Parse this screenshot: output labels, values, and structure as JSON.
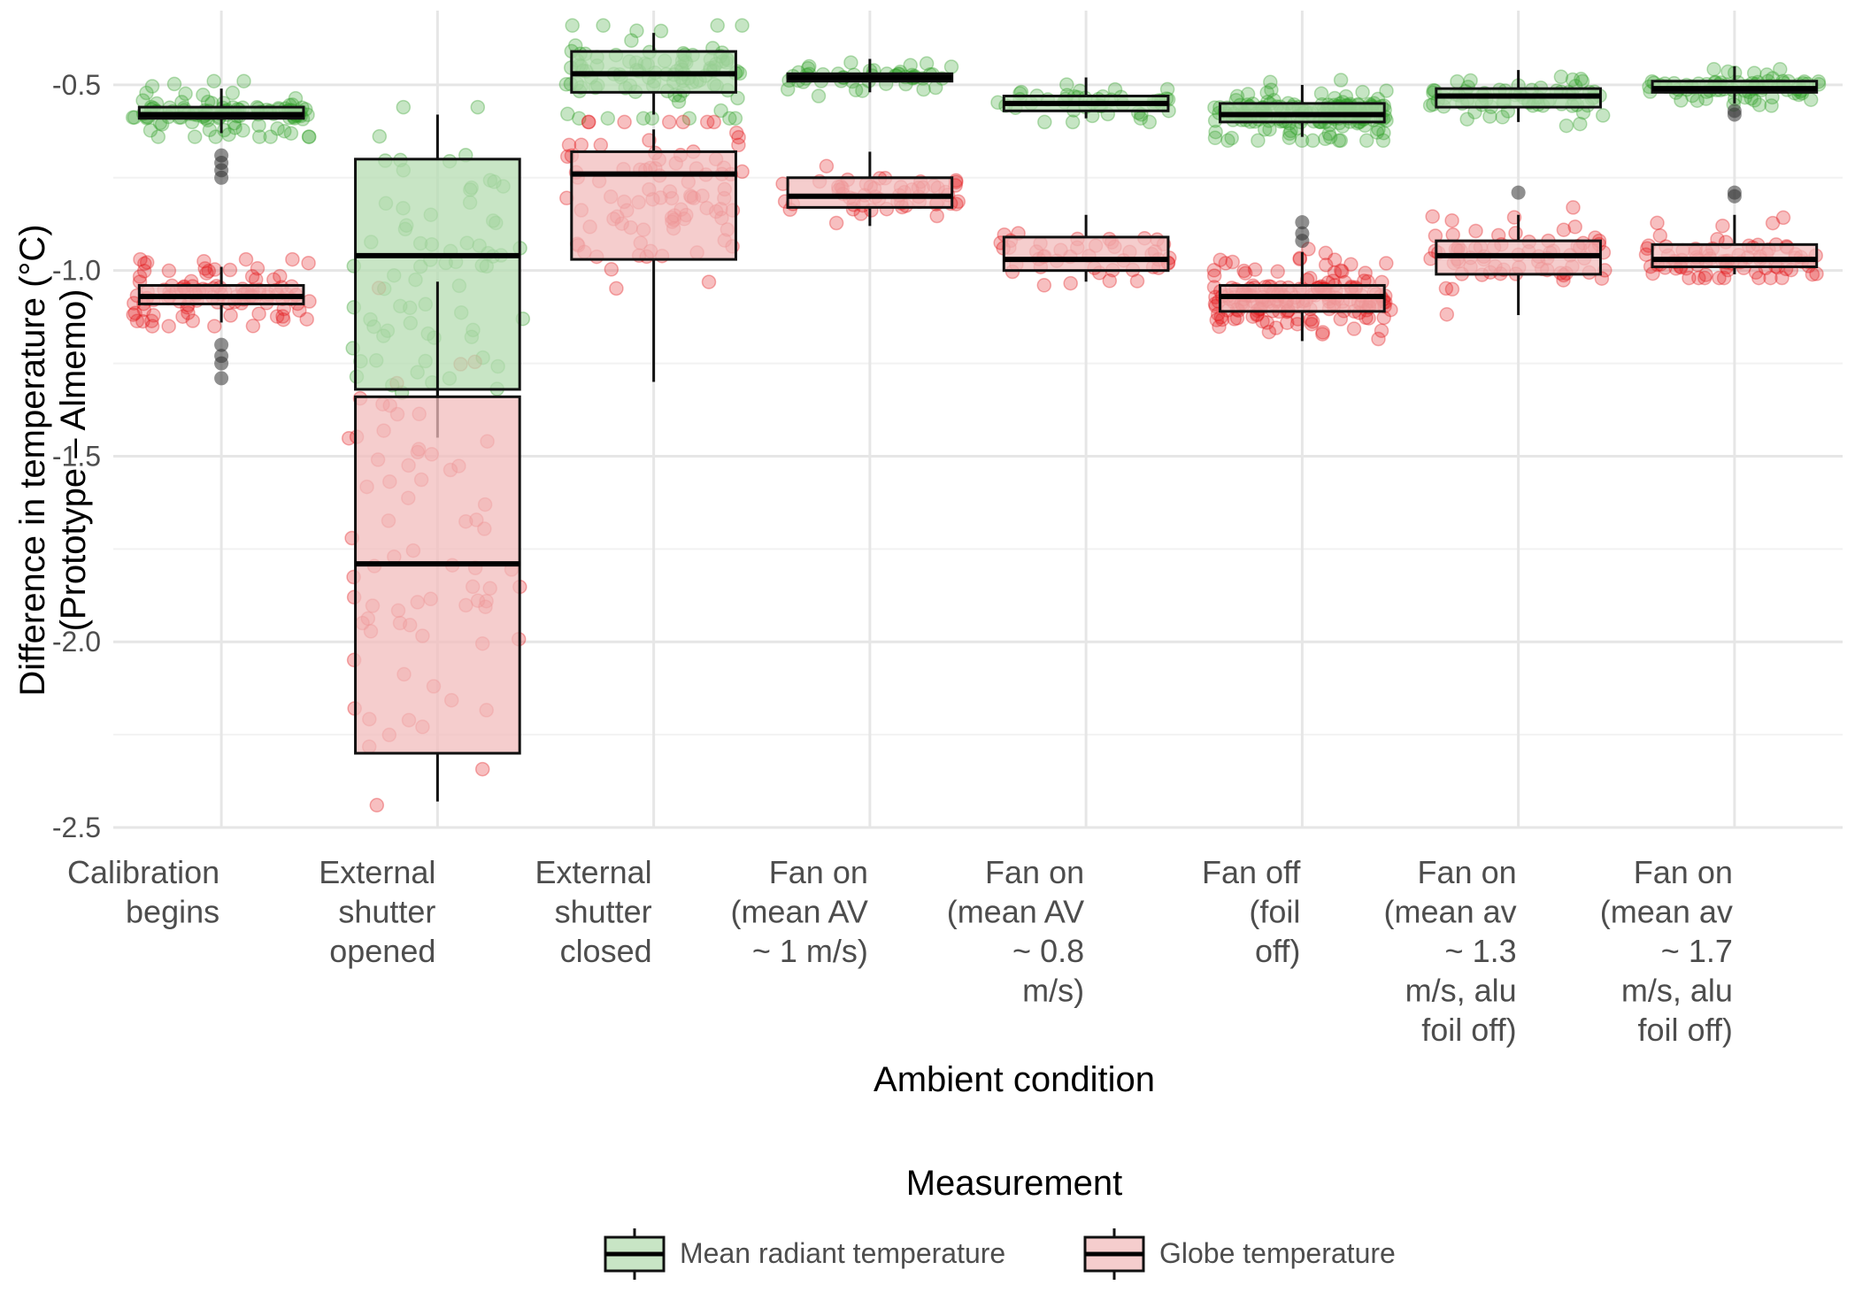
{
  "chart_data": {
    "type": "boxplot",
    "title": "",
    "xlabel": "Ambient condition",
    "ylabel_lines": [
      "Difference in temperature (°C)",
      "(Prototype – Almemo)"
    ],
    "ylim": [
      -2.5,
      -0.3
    ],
    "yticks": [
      -2.5,
      -2.0,
      -1.5,
      -1.0,
      -0.5
    ],
    "ytick_labels": [
      "-2.5",
      "-2.0",
      "-1.5",
      "-1.0",
      "-0.5"
    ],
    "grid": true,
    "categories": [
      {
        "lines": [
          "Calibration",
          "begins"
        ]
      },
      {
        "lines": [
          "External",
          "shutter",
          "opened"
        ]
      },
      {
        "lines": [
          "External",
          "shutter",
          "closed"
        ]
      },
      {
        "lines": [
          "Fan on",
          "(mean AV",
          "~ 1 m/s)"
        ]
      },
      {
        "lines": [
          "Fan on",
          "(mean AV",
          "~ 0.8",
          "m/s)"
        ]
      },
      {
        "lines": [
          "Fan off",
          "(foil",
          "off)"
        ]
      },
      {
        "lines": [
          "Fan on",
          "(mean av",
          "~ 1.3",
          "m/s, alu",
          "foil off)"
        ]
      },
      {
        "lines": [
          "Fan on",
          "(mean av",
          "~ 1.7",
          "m/s, alu",
          "foil off)"
        ]
      }
    ],
    "series": [
      {
        "name": "Mean radiant temperature",
        "point_color": "#33a02c",
        "fill_color": "#b6dcb2",
        "boxes": [
          {
            "q1": -0.59,
            "median": -0.58,
            "q3": -0.56,
            "whisker_low": -0.63,
            "whisker_high": -0.51,
            "outliers": [
              -0.69,
              -0.71,
              -0.73,
              -0.75
            ],
            "n": 110,
            "spread": 0.11
          },
          {
            "q1": -1.32,
            "median": -0.96,
            "q3": -0.7,
            "whisker_low": -1.45,
            "whisker_high": -0.58,
            "outliers": [],
            "n": 70,
            "spread": 0.42
          },
          {
            "q1": -0.52,
            "median": -0.47,
            "q3": -0.41,
            "whisker_low": -0.58,
            "whisker_high": -0.36,
            "outliers": [],
            "n": 100,
            "spread": 0.13
          },
          {
            "q1": -0.49,
            "median": -0.48,
            "q3": -0.47,
            "whisker_low": -0.52,
            "whisker_high": -0.43,
            "outliers": [],
            "n": 50,
            "spread": 0.04
          },
          {
            "q1": -0.57,
            "median": -0.55,
            "q3": -0.53,
            "whisker_low": -0.59,
            "whisker_high": -0.48,
            "outliers": [],
            "n": 45,
            "spread": 0.05
          },
          {
            "q1": -0.6,
            "median": -0.58,
            "q3": -0.55,
            "whisker_low": -0.64,
            "whisker_high": -0.5,
            "outliers": [],
            "n": 180,
            "spread": 0.08
          },
          {
            "q1": -0.56,
            "median": -0.53,
            "q3": -0.51,
            "whisker_low": -0.6,
            "whisker_high": -0.46,
            "outliers": [],
            "n": 70,
            "spread": 0.07
          },
          {
            "q1": -0.52,
            "median": -0.51,
            "q3": -0.49,
            "whisker_low": -0.55,
            "whisker_high": -0.45,
            "outliers": [
              -0.57,
              -0.58
            ],
            "n": 80,
            "spread": 0.05
          }
        ]
      },
      {
        "name": "Globe temperature",
        "point_color": "#e31a1c",
        "fill_color": "#f1bcbc",
        "boxes": [
          {
            "q1": -1.09,
            "median": -1.07,
            "q3": -1.04,
            "whisker_low": -1.14,
            "whisker_high": -0.99,
            "outliers": [
              -1.2,
              -1.23,
              -1.25,
              -1.29
            ],
            "n": 110,
            "spread": 0.1
          },
          {
            "q1": -2.3,
            "median": -1.79,
            "q3": -1.34,
            "whisker_low": -2.43,
            "whisker_high": -1.03,
            "outliers": [],
            "n": 70,
            "spread": 0.55
          },
          {
            "q1": -0.97,
            "median": -0.74,
            "q3": -0.68,
            "whisker_low": -1.3,
            "whisker_high": -0.62,
            "outliers": [],
            "n": 90,
            "spread": 0.26
          },
          {
            "q1": -0.83,
            "median": -0.8,
            "q3": -0.75,
            "whisker_low": -0.88,
            "whisker_high": -0.68,
            "outliers": [],
            "n": 55,
            "spread": 0.07
          },
          {
            "q1": -1.0,
            "median": -0.97,
            "q3": -0.91,
            "whisker_low": -1.03,
            "whisker_high": -0.85,
            "outliers": [],
            "n": 45,
            "spread": 0.07
          },
          {
            "q1": -1.11,
            "median": -1.07,
            "q3": -1.04,
            "whisker_low": -1.19,
            "whisker_high": -0.95,
            "outliers": [
              -0.87,
              -0.9,
              -0.92
            ],
            "n": 180,
            "spread": 0.1
          },
          {
            "q1": -1.01,
            "median": -0.96,
            "q3": -0.92,
            "whisker_low": -1.12,
            "whisker_high": -0.85,
            "outliers": [
              -0.79
            ],
            "n": 70,
            "spread": 0.09
          },
          {
            "q1": -0.99,
            "median": -0.97,
            "q3": -0.93,
            "whisker_low": -1.01,
            "whisker_high": -0.85,
            "outliers": [
              -0.79,
              -0.8
            ],
            "n": 80,
            "spread": 0.07
          }
        ]
      }
    ],
    "legend": {
      "title": "Measurement",
      "position": "bottom",
      "items": [
        "Mean radiant temperature",
        "Globe temperature"
      ]
    }
  }
}
